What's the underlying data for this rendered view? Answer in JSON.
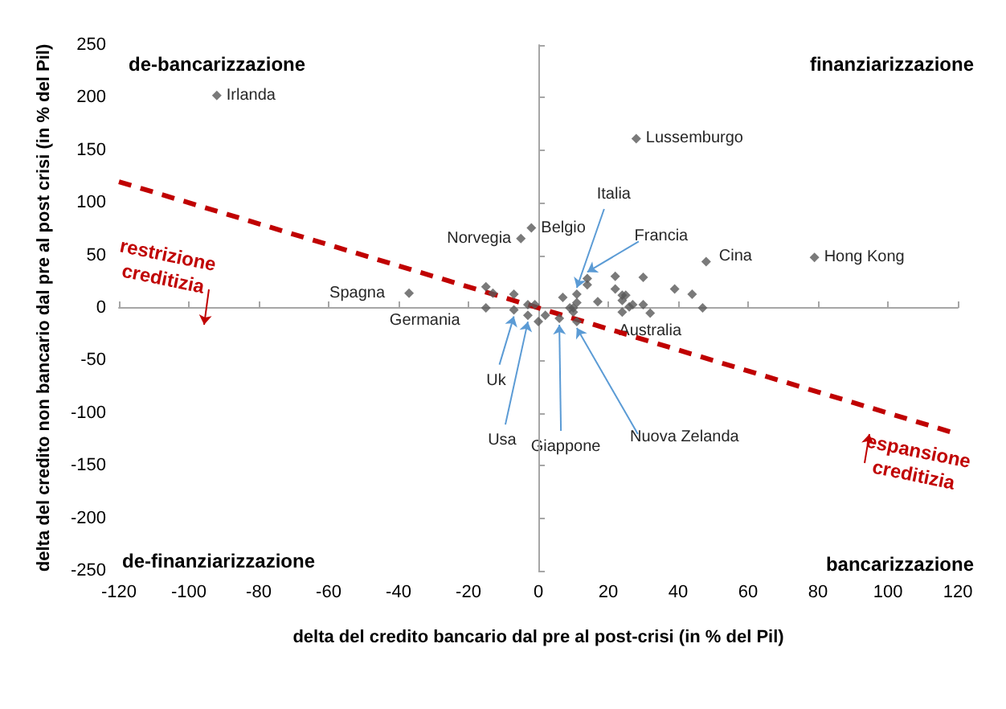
{
  "chart_data": {
    "type": "scatter",
    "xlabel": "delta del credito bancario dal pre al post-crisi (in % del Pil)",
    "ylabel": "delta del credito non bancario dal pre al post crisi (in % del Pil)",
    "xlim": [
      -120,
      120
    ],
    "xticks": [
      -120,
      -100,
      -80,
      -60,
      -40,
      -20,
      0,
      20,
      40,
      60,
      80,
      100,
      120
    ],
    "ylim": [
      -250,
      250
    ],
    "yticks": [
      -250,
      -200,
      -150,
      -100,
      -50,
      0,
      50,
      100,
      150,
      200,
      250
    ],
    "marker": "diamond",
    "series": [
      {
        "color": "#595959",
        "x": [
          -92,
          28,
          -2,
          -5,
          79,
          48,
          -37,
          -15,
          -13,
          -7,
          -15,
          -3,
          -1,
          -7,
          -3,
          0,
          2,
          7,
          6,
          9,
          10,
          10,
          11,
          11,
          11,
          14,
          14,
          17,
          22,
          22,
          24,
          24,
          25,
          24,
          26,
          27,
          30,
          30,
          32,
          39,
          44,
          47
        ],
        "values": [
          202,
          161,
          76,
          66,
          48,
          44,
          14,
          20,
          14,
          13,
          0,
          3,
          3,
          -2,
          -7,
          -13,
          -7,
          10,
          -10,
          0,
          -4,
          0,
          5,
          13,
          -13,
          22,
          28,
          6,
          30,
          18,
          12,
          7,
          12,
          -4,
          1,
          3,
          29,
          3,
          -5,
          18,
          13,
          0
        ]
      },
      {
        "type": "line",
        "color": "#c00000",
        "line_style": "dashed",
        "marker": "none",
        "x": [
          -120,
          120
        ],
        "values": [
          120,
          -120
        ]
      }
    ],
    "annotations": [
      "de-bancarizzazione",
      "finanziarizzazione",
      "de-finanziarizzazione",
      "bancarizzazione",
      "restrizione creditizia",
      "espansione creditizia",
      {
        "text": "Irlanda",
        "x": -92,
        "y": 202
      },
      {
        "text": "Lussemburgo",
        "x": 28,
        "y": 161
      },
      {
        "text": "Belgio",
        "x": -2,
        "y": 76
      },
      {
        "text": "Norvegia",
        "x": -5,
        "y": 66
      },
      {
        "text": "Hong Kong",
        "x": 79,
        "y": 48
      },
      {
        "text": "Cina",
        "x": 48,
        "y": 44
      },
      {
        "text": "Spagna",
        "x": -37,
        "y": 14
      },
      {
        "text": "Germania",
        "x": -15,
        "y": 0
      },
      {
        "text": "Italia",
        "x": 11,
        "y": 13
      },
      {
        "text": "Francia",
        "x": 14,
        "y": 28
      },
      {
        "text": "Uk",
        "x": -7,
        "y": -2
      },
      {
        "text": "Usa",
        "x": -3,
        "y": -7
      },
      {
        "text": "Giappone",
        "x": 6,
        "y": -10
      },
      {
        "text": "Nuova Zelanda",
        "x": 11,
        "y": -13
      },
      {
        "text": "Australia",
        "x": 32,
        "y": -5
      }
    ]
  }
}
